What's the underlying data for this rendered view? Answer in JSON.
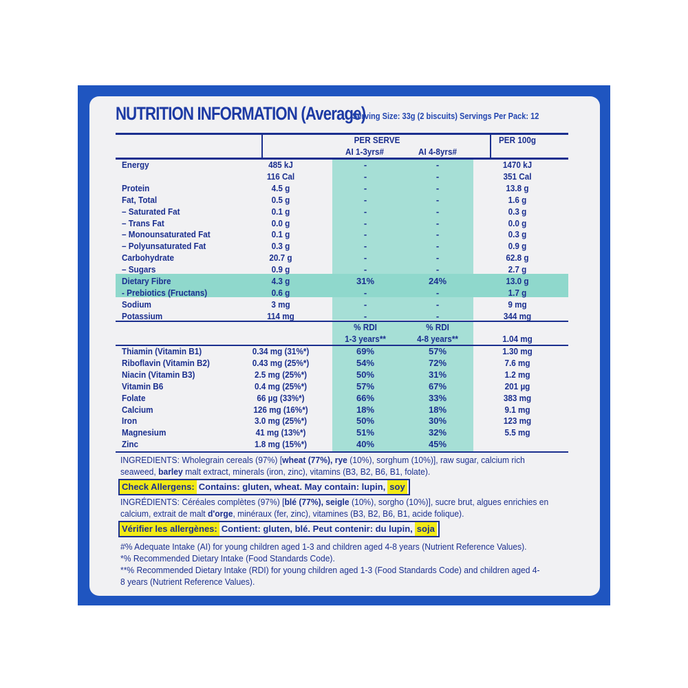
{
  "title": "NUTRITION INFORMATION (Average)",
  "serving": "Serving Size: 33g (2 biscuits)  Servings Per Pack: 12",
  "header": {
    "per_serve": "PER SERVE",
    "ai13": "AI 1-3yrs#",
    "ai48": "AI 4-8yrs#",
    "per100": "PER 100g"
  },
  "rows": [
    {
      "label": "Energy",
      "serve": "485 kJ",
      "ai13": "-",
      "ai48": "-",
      "per100": "1470 kJ"
    },
    {
      "label": "",
      "serve": "116 Cal",
      "ai13": "-",
      "ai48": "-",
      "per100": "351 Cal"
    },
    {
      "label": "Protein",
      "serve": "4.5 g",
      "ai13": "-",
      "ai48": "-",
      "per100": "13.8 g"
    },
    {
      "label": "Fat, Total",
      "serve": "0.5 g",
      "ai13": "-",
      "ai48": "-",
      "per100": "1.6 g"
    },
    {
      "label": "– Saturated Fat",
      "serve": "0.1 g",
      "ai13": "-",
      "ai48": "-",
      "per100": "0.3 g"
    },
    {
      "label": "– Trans Fat",
      "serve": "0.0 g",
      "ai13": "-",
      "ai48": "-",
      "per100": "0.0 g"
    },
    {
      "label": "– Monounsaturated Fat",
      "serve": "0.1 g",
      "ai13": "-",
      "ai48": "-",
      "per100": "0.3 g"
    },
    {
      "label": "– Polyunsaturated Fat",
      "serve": "0.3 g",
      "ai13": "-",
      "ai48": "-",
      "per100": "0.9 g"
    },
    {
      "label": "Carbohydrate",
      "serve": "20.7 g",
      "ai13": "-",
      "ai48": "-",
      "per100": "62.8 g"
    },
    {
      "label": "– Sugars",
      "serve": "0.9 g",
      "ai13": "-",
      "ai48": "-",
      "per100": "2.7 g"
    },
    {
      "label": "Dietary Fibre",
      "serve": "4.3 g",
      "ai13": "31%",
      "ai48": "24%",
      "per100": "13.0 g"
    },
    {
      "label": "- Prebiotics (Fructans)",
      "serve": "0.6 g",
      "ai13": "-",
      "ai48": "-",
      "per100": "1.7 g"
    },
    {
      "label": "Sodium",
      "serve": "3 mg",
      "ai13": "-",
      "ai48": "-",
      "per100": "9 mg"
    },
    {
      "label": "Potassium",
      "serve": "114 mg",
      "ai13": "-",
      "ai48": "-",
      "per100": "344 mg"
    }
  ],
  "rdi_header": {
    "rdi13_a": "% RDI",
    "rdi13_b": "1-3 years**",
    "rdi48_a": "% RDI",
    "rdi48_b": "4-8 years**",
    "per100": "1.04 mg"
  },
  "vitamins": [
    {
      "label": "Thiamin (Vitamin B1)",
      "serve": "0.34 mg (31%*)",
      "ai13": "69%",
      "ai48": "57%",
      "per100": "1.30 mg"
    },
    {
      "label": "Riboflavin (Vitamin B2)",
      "serve": "0.43 mg (25%*)",
      "ai13": "54%",
      "ai48": "72%",
      "per100": "7.6 mg"
    },
    {
      "label": "Niacin (Vitamin B3)",
      "serve": "2.5 mg (25%*)",
      "ai13": "50%",
      "ai48": "31%",
      "per100": "1.2 mg"
    },
    {
      "label": "Vitamin B6",
      "serve": "0.4 mg (25%*)",
      "ai13": "57%",
      "ai48": "67%",
      "per100": "201 µg"
    },
    {
      "label": "Folate",
      "serve": "66 µg (33%*)",
      "ai13": "66%",
      "ai48": "33%",
      "per100": "383 mg"
    },
    {
      "label": "Calcium",
      "serve": "126 mg (16%*)",
      "ai13": "18%",
      "ai48": "18%",
      "per100": "9.1 mg"
    },
    {
      "label": "Iron",
      "serve": "3.0 mg (25%*)",
      "ai13": "50%",
      "ai48": "30%",
      "per100": "123 mg"
    },
    {
      "label": "Magnesium",
      "serve": "41 mg (13%*)",
      "ai13": "51%",
      "ai48": "32%",
      "per100": "5.5 mg"
    },
    {
      "label": "Zinc",
      "serve": "1.8 mg (15%*)",
      "ai13": "40%",
      "ai48": "45%",
      "per100": ""
    }
  ],
  "ingredients_en": [
    "INGREDIENTS: Wholegrain cereals (97%) [",
    "wheat (77%), rye",
    " (10%), sorghum (10%)], raw sugar, calcium rich seaweed, ",
    "barley",
    " malt extract, minerals (iron, zinc), vitamins (B3, B2, B6, B1, folate)."
  ],
  "allergens_en": {
    "label": "Check Allergens:",
    "text": "Contains: gluten, wheat. May contain: lupin,",
    "highlight": "soy"
  },
  "ingredients_fr": [
    "INGRÉDIENTS: Céréales complètes (97%) [",
    "blé (77%), seigle",
    " (10%), sorgho (10%)], sucre brut, algues enrichies en calcium, extrait de malt ",
    "d'orge",
    ", minéraux (fer, zinc), vitamines (B3, B2, B6, B1, acide folique)."
  ],
  "allergens_fr": {
    "label": "Vérifier les allergènes:",
    "text": "Contient: gluten, blé.  Peut contenir: du lupin,",
    "highlight": "soja"
  },
  "footnotes": [
    "#% Adequate Intake (AI) for young children aged 1-3 and children aged 4-8 years (Nutrient Reference Values).",
    "*% Recommended Dietary Intake (Food Standards Code).",
    "**% Recommended Dietary Intake (RDI) for young children aged 1-3 (Food Standards Code) and children aged 4-8 years (Nutrient Reference Values)."
  ],
  "colors": {
    "frame": "#1f55c0",
    "text": "#1b2f8f",
    "teal": "#a6dfd6",
    "highlight": "#f2ea16"
  }
}
